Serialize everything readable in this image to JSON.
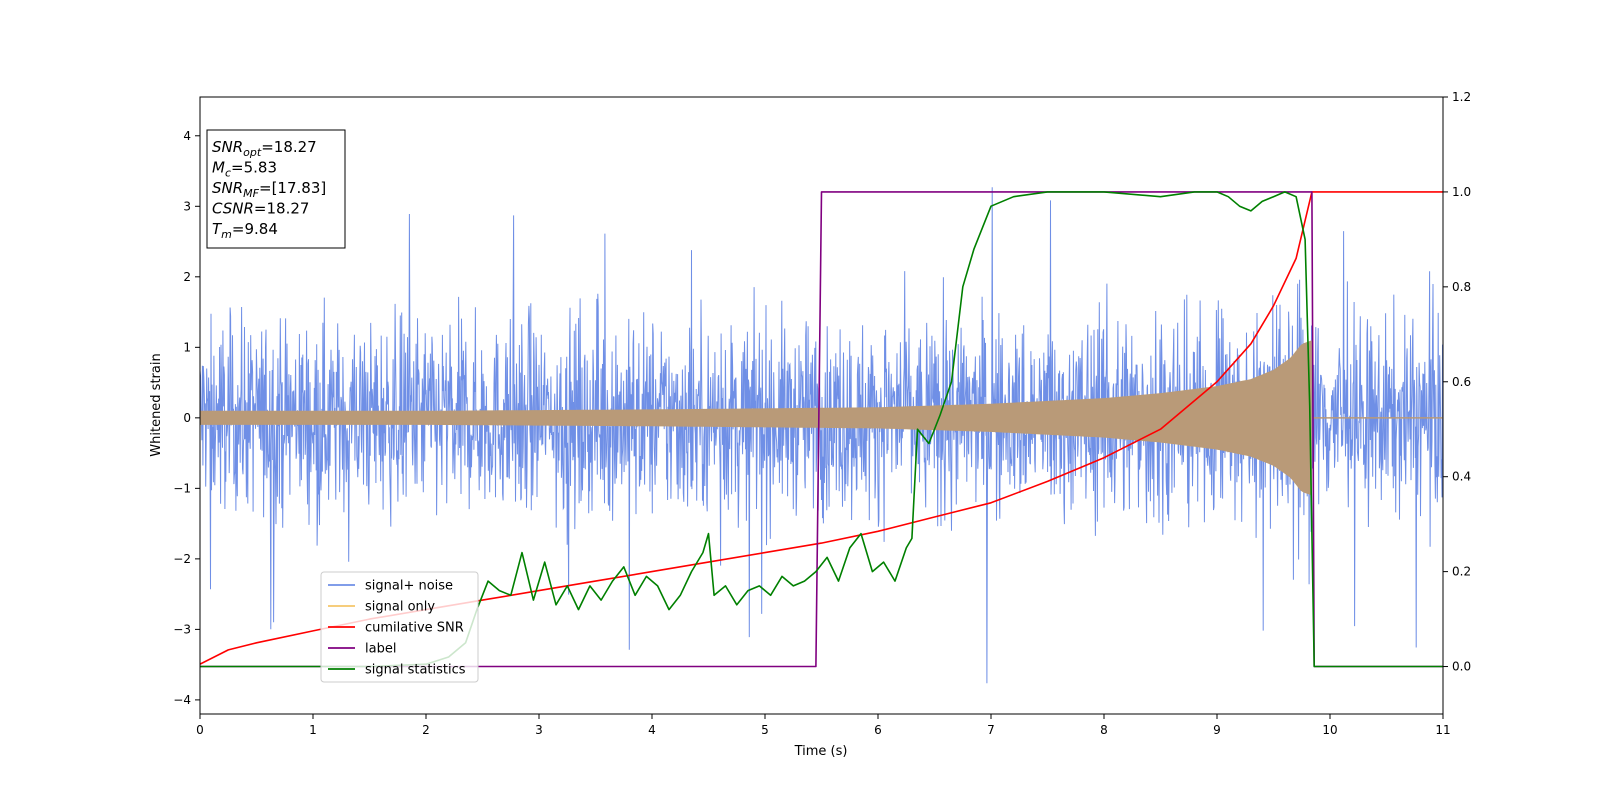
{
  "chart_data": {
    "type": "line",
    "xlabel": "Time (s)",
    "ylabel": "Whitened strain",
    "xlim": [
      0,
      11
    ],
    "ylim_left": [
      -4.2,
      4.55
    ],
    "ylim_right": [
      -0.1,
      1.2
    ],
    "xticks": [
      0,
      1,
      2,
      3,
      4,
      5,
      6,
      7,
      8,
      9,
      10,
      11
    ],
    "yticks_left": [
      -4,
      -3,
      -2,
      -1,
      0,
      1,
      2,
      3,
      4
    ],
    "yticks_left_labels": [
      "−4",
      "−3",
      "−2",
      "−1",
      "0",
      "1",
      "2",
      "3",
      "4"
    ],
    "yticks_right": [
      0.0,
      0.2,
      0.4,
      0.6,
      0.8,
      1.0,
      1.2
    ],
    "yticks_right_labels": [
      "0.0",
      "0.2",
      "0.4",
      "0.6",
      "0.8",
      "1.0",
      "1.2"
    ],
    "legend_position": "lower-left",
    "colors": {
      "signal_noise": "#6f8fe6",
      "signal_only": "#f5c66a",
      "signal_only_blend": "#b99a78",
      "cumulative_snr": "#ff0000",
      "label": "#800080",
      "statistics": "#008000"
    },
    "series": [
      {
        "name": "signal+ noise",
        "axis": "left",
        "noise_band": [
          -2.9,
          3.8
        ]
      },
      {
        "name": "signal only",
        "axis": "left",
        "envelope_end": 9.84,
        "envelope": [
          [
            0,
            0.1
          ],
          [
            2,
            0.1
          ],
          [
            4,
            0.12
          ],
          [
            6,
            0.15
          ],
          [
            7,
            0.2
          ],
          [
            8,
            0.28
          ],
          [
            8.5,
            0.35
          ],
          [
            9,
            0.45
          ],
          [
            9.3,
            0.55
          ],
          [
            9.5,
            0.68
          ],
          [
            9.65,
            0.85
          ],
          [
            9.75,
            1.05
          ],
          [
            9.84,
            1.1
          ]
        ]
      },
      {
        "name": "cumilative SNR",
        "axis": "right",
        "x": [
          0,
          0.25,
          0.5,
          1,
          1.5,
          2,
          2.5,
          3,
          3.5,
          4,
          4.5,
          5,
          5.5,
          6,
          6.5,
          7,
          7.5,
          8,
          8.5,
          9,
          9.3,
          9.5,
          9.7,
          9.84,
          11
        ],
        "y": [
          0.005,
          0.035,
          0.05,
          0.075,
          0.1,
          0.12,
          0.14,
          0.16,
          0.18,
          0.2,
          0.22,
          0.24,
          0.26,
          0.285,
          0.315,
          0.345,
          0.39,
          0.44,
          0.5,
          0.6,
          0.68,
          0.76,
          0.86,
          1.0,
          1.0
        ]
      },
      {
        "name": "label",
        "axis": "right",
        "x": [
          0,
          5.45,
          5.5,
          9.84,
          9.86,
          11
        ],
        "y": [
          0,
          0,
          1,
          1,
          0,
          0
        ]
      },
      {
        "name": "signal statistics",
        "axis": "right",
        "x": [
          0,
          0.5,
          1,
          1.5,
          2,
          2.2,
          2.35,
          2.45,
          2.55,
          2.65,
          2.75,
          2.85,
          2.95,
          3.05,
          3.15,
          3.25,
          3.35,
          3.45,
          3.55,
          3.65,
          3.75,
          3.85,
          3.95,
          4.05,
          4.15,
          4.25,
          4.35,
          4.45,
          4.5,
          4.55,
          4.65,
          4.75,
          4.85,
          4.95,
          5.05,
          5.15,
          5.25,
          5.35,
          5.45,
          5.55,
          5.65,
          5.75,
          5.85,
          5.95,
          6.05,
          6.15,
          6.25,
          6.3,
          6.35,
          6.45,
          6.55,
          6.65,
          6.75,
          6.85,
          7.0,
          7.2,
          7.5,
          8.0,
          8.5,
          8.8,
          9.0,
          9.1,
          9.2,
          9.3,
          9.4,
          9.5,
          9.6,
          9.7,
          9.78,
          9.82,
          9.86,
          9.9,
          10.0,
          11.0
        ],
        "y": [
          0,
          0,
          0,
          0,
          0.005,
          0.02,
          0.05,
          0.12,
          0.18,
          0.16,
          0.15,
          0.24,
          0.14,
          0.22,
          0.13,
          0.17,
          0.12,
          0.17,
          0.14,
          0.18,
          0.21,
          0.15,
          0.19,
          0.17,
          0.12,
          0.15,
          0.2,
          0.24,
          0.28,
          0.15,
          0.17,
          0.13,
          0.16,
          0.17,
          0.15,
          0.19,
          0.17,
          0.18,
          0.2,
          0.23,
          0.18,
          0.25,
          0.28,
          0.2,
          0.22,
          0.18,
          0.25,
          0.27,
          0.5,
          0.47,
          0.53,
          0.6,
          0.8,
          0.88,
          0.97,
          0.99,
          1.0,
          1.0,
          0.99,
          1.0,
          1.0,
          0.99,
          0.97,
          0.96,
          0.98,
          0.99,
          1.0,
          0.99,
          0.9,
          0.55,
          0.0,
          0.0,
          0.0,
          0.0
        ]
      }
    ],
    "annotation_box": [
      {
        "base": "SNR",
        "sub": "opt",
        "value": "=18.27"
      },
      {
        "base": "M",
        "sub": "c",
        "value": "=5.83"
      },
      {
        "base": "SNR",
        "sub": "MF",
        "value": "=[17.83]"
      },
      {
        "base": "CSNR",
        "sub": "",
        "value": "=18.27"
      },
      {
        "base": "T",
        "sub": "m",
        "value": "=9.84"
      }
    ]
  }
}
